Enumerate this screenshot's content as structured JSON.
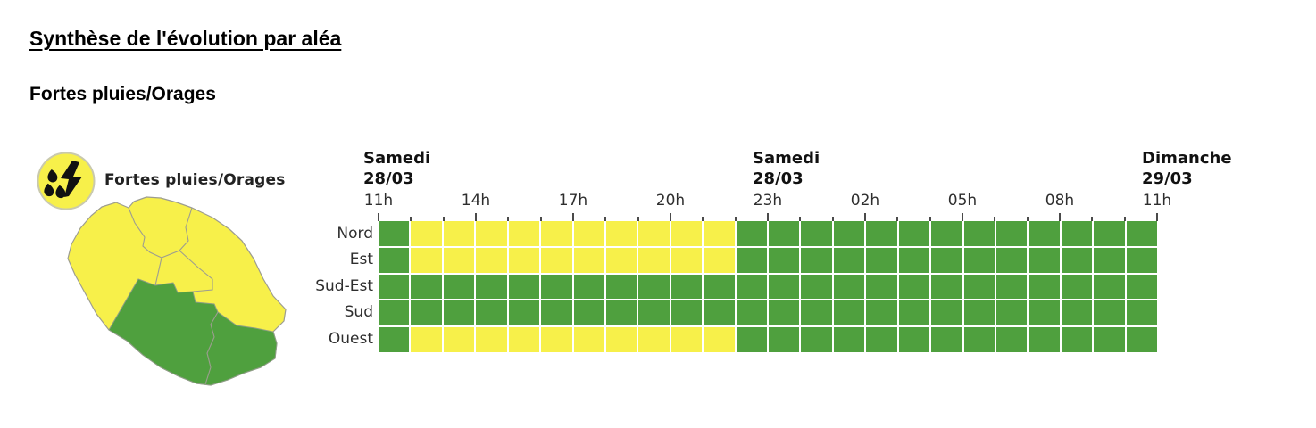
{
  "page": {
    "title": "Synthèse de l'évolution par aléa",
    "section_title": "Fortes pluies/Orages"
  },
  "legend": {
    "icon": "rain-thunderstorm-icon",
    "label": "Fortes pluies/Orages"
  },
  "colors": {
    "vigilance_jaune": "#f7f04a",
    "vigilance_vert": "#4fa03e",
    "tick": "#4a4a4a",
    "map_border": "#9d9d90",
    "icon_outline": "#c9c9ae"
  },
  "map": {
    "island": "La Réunion",
    "zones": [
      {
        "name": "Nord",
        "level": "jaune"
      },
      {
        "name": "Est",
        "level": "jaune"
      },
      {
        "name": "Ouest",
        "level": "jaune"
      },
      {
        "name": "Sud-Est",
        "level": "vert"
      },
      {
        "name": "Sud",
        "level": "vert"
      }
    ]
  },
  "chart_data": {
    "type": "heatmap",
    "description": "Vigilance timeline per zone, 1 cell = 1 hour, from Samedi 11h to Dimanche 11h",
    "cells_total": 24,
    "hours_per_label": 3,
    "hour_tick_labels": [
      "11h",
      "14h",
      "17h",
      "20h",
      "23h",
      "02h",
      "05h",
      "08h",
      "11h"
    ],
    "day_headers": [
      {
        "day": "Samedi",
        "date": "28/03",
        "tick_index": 0
      },
      {
        "day": "Samedi",
        "date": "28/03",
        "tick_index": 12
      },
      {
        "day": "Dimanche",
        "date": "29/03",
        "tick_index": 24
      }
    ],
    "level_codes": {
      "V": "vert",
      "J": "jaune"
    },
    "rows": [
      {
        "label": "Nord",
        "pattern": "VJJJJJJJJJJVVVVVVVVVVVVV"
      },
      {
        "label": "Est",
        "pattern": "VJJJJJJJJJJVVVVVVVVVVVVV"
      },
      {
        "label": "Sud-Est",
        "pattern": "VVVVVVVVVVVVVVVVVVVVVVVV"
      },
      {
        "label": "Sud",
        "pattern": "VVVVVVVVVVVVVVVVVVVVVVVV"
      },
      {
        "label": "Ouest",
        "pattern": "VJJJJJJJJJJVVVVVVVVVVVVV"
      }
    ],
    "grid_on": true,
    "legend_position": "left"
  }
}
